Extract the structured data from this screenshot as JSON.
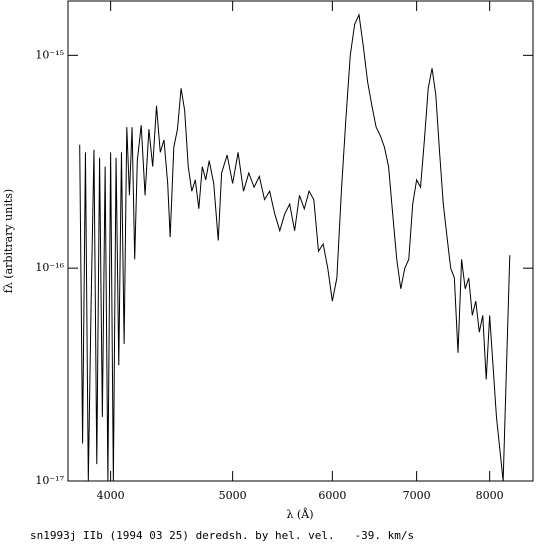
{
  "chart_data": {
    "type": "line",
    "xlabel": "λ (Å)",
    "ylabel": "fλ (arbitrary units)",
    "caption": "sn1993j IIb (1994 03 25) deredsh. by hel. vel.   -39. km/s",
    "color": "#000000",
    "xlog": true,
    "ylog": true,
    "xlim": [
      3700,
      8660
    ],
    "ylim": [
      1e-17,
      1.8e-15
    ],
    "xticks": [
      4000,
      5000,
      6000,
      7000,
      8000
    ],
    "yticks": [
      {
        "value": 1e-17,
        "label": "10⁻¹⁷"
      },
      {
        "value": 1e-16,
        "label": "10⁻¹⁶"
      },
      {
        "value": 1e-15,
        "label": "10⁻¹⁵"
      }
    ],
    "x": [
      3780,
      3800,
      3820,
      3840,
      3860,
      3880,
      3900,
      3920,
      3940,
      3960,
      3980,
      4000,
      4020,
      4040,
      4060,
      4080,
      4100,
      4120,
      4140,
      4160,
      4180,
      4200,
      4230,
      4260,
      4290,
      4320,
      4350,
      4380,
      4410,
      4440,
      4460,
      4490,
      4520,
      4550,
      4580,
      4610,
      4640,
      4670,
      4700,
      4730,
      4760,
      4790,
      4830,
      4870,
      4900,
      4950,
      5000,
      5050,
      5100,
      5150,
      5200,
      5250,
      5300,
      5350,
      5400,
      5450,
      5500,
      5550,
      5600,
      5650,
      5700,
      5750,
      5800,
      5850,
      5900,
      5950,
      6000,
      6050,
      6100,
      6150,
      6200,
      6250,
      6300,
      6350,
      6400,
      6450,
      6500,
      6550,
      6600,
      6650,
      6700,
      6750,
      6800,
      6850,
      6900,
      6950,
      7000,
      7050,
      7100,
      7150,
      7200,
      7250,
      7300,
      7350,
      7400,
      7450,
      7500,
      7550,
      7600,
      7650,
      7700,
      7750,
      7800,
      7850,
      7900,
      7950,
      8000,
      8100,
      8200,
      8300
    ],
    "values": [
      3.8e-16,
      1.5e-17,
      3.5e-16,
      1e-17,
      7e-17,
      3.6e-16,
      1.2e-17,
      3.3e-16,
      2e-17,
      3e-16,
      1e-17,
      3.5e-16,
      1e-17,
      3.3e-16,
      3.5e-17,
      3.5e-16,
      4.4e-17,
      4.6e-16,
      2.2e-16,
      4.6e-16,
      1.1e-16,
      3.2e-16,
      4.7e-16,
      2.2e-16,
      4.5e-16,
      3e-16,
      5.8e-16,
      3.5e-16,
      4e-16,
      2.5e-16,
      1.4e-16,
      3.7e-16,
      4.5e-16,
      7e-16,
      5.5e-16,
      3e-16,
      2.3e-16,
      2.6e-16,
      1.9e-16,
      3e-16,
      2.6e-16,
      3.2e-16,
      2.5e-16,
      1.35e-16,
      2.8e-16,
      3.4e-16,
      2.5e-16,
      3.5e-16,
      2.3e-16,
      2.8e-16,
      2.4e-16,
      2.7e-16,
      2.1e-16,
      2.3e-16,
      1.8e-16,
      1.5e-16,
      1.8e-16,
      2e-16,
      1.5e-16,
      2.2e-16,
      1.9e-16,
      2.3e-16,
      2.1e-16,
      1.2e-16,
      1.3e-16,
      1e-16,
      7e-17,
      9e-17,
      2.3e-16,
      5e-16,
      1e-15,
      1.4e-15,
      1.55e-15,
      1.1e-15,
      7.5e-16,
      5.8e-16,
      4.6e-16,
      4.2e-16,
      3.7e-16,
      3e-16,
      1.8e-16,
      1.1e-16,
      8e-17,
      1e-16,
      1.1e-16,
      2e-16,
      2.6e-16,
      2.4e-16,
      4e-16,
      7e-16,
      8.7e-16,
      6.5e-16,
      3.5e-16,
      2e-16,
      1.4e-16,
      1e-16,
      9e-17,
      4e-17,
      1.1e-16,
      8e-17,
      9e-17,
      6e-17,
      7e-17,
      5e-17,
      6e-17,
      3e-17,
      6e-17,
      2e-17,
      1e-17,
      1.15e-16
    ]
  }
}
